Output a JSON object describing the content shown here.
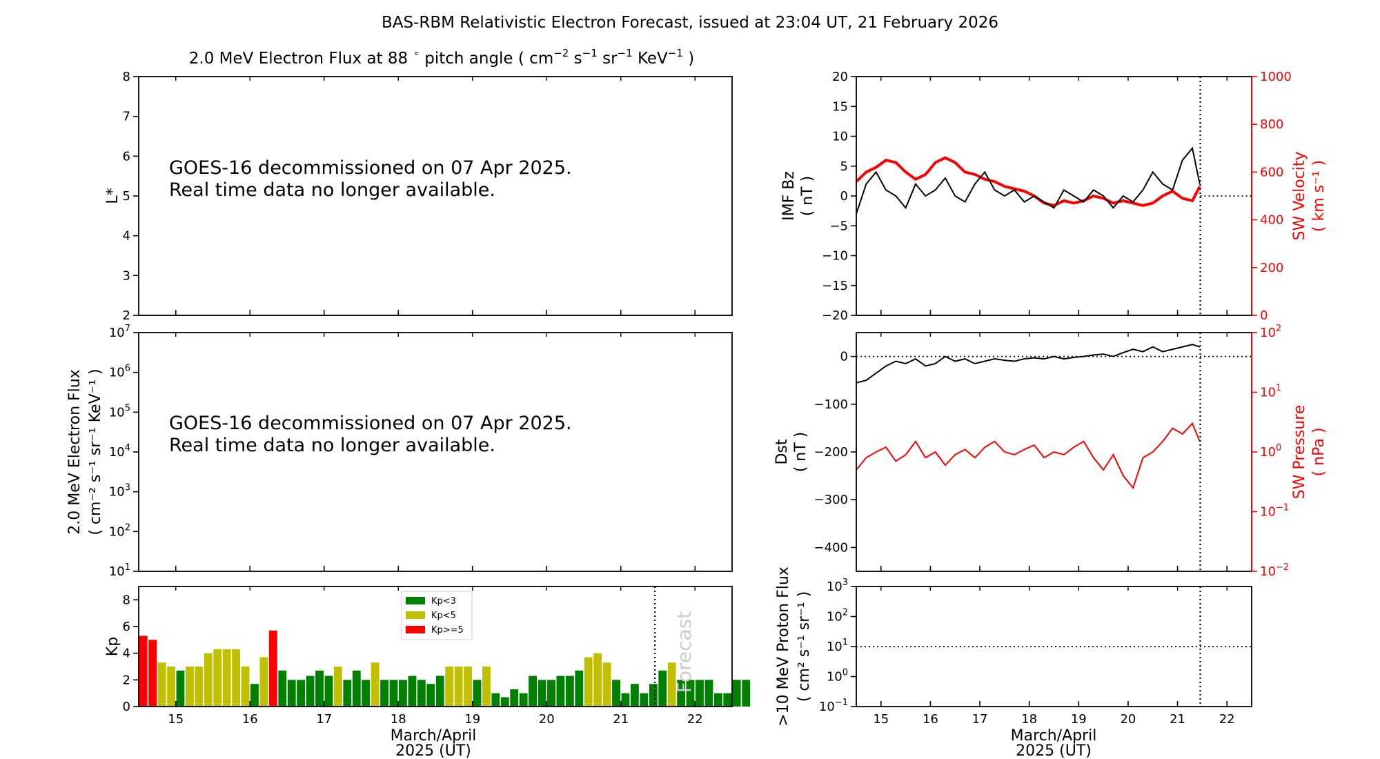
{
  "title": "BAS-RBM Relativistic Electron Forecast, issued at 23:04 UT, 21 February 2026",
  "colors": {
    "kp_low": "#008000",
    "kp_mid": "#c0c000",
    "kp_high": "#ff0000",
    "red": "#ff0000"
  },
  "x_axis": {
    "range": [
      14.5,
      22.5
    ],
    "ticks": [
      15,
      16,
      17,
      18,
      19,
      20,
      21,
      22
    ],
    "tick_labels": [
      "15",
      "16",
      "17",
      "18",
      "19",
      "20",
      "21",
      "22"
    ],
    "forecast_start": 21.46
  },
  "panel_lstar": {
    "title_prefix": "2.0 MeV Electron Flux at 88",
    "title_deg": "∘",
    "title_mid": " pitch angle ( cm",
    "title_units": [
      {
        "base": " cm",
        "exp": "−2"
      },
      {
        "base": " s",
        "exp": "−1"
      },
      {
        "base": " sr",
        "exp": "−1"
      },
      {
        "base": " KeV",
        "exp": "−1"
      }
    ],
    "ylabel": "L*",
    "ylim": [
      2,
      8
    ],
    "yticks": [
      "2",
      "3",
      "4",
      "5",
      "6",
      "7",
      "8"
    ],
    "message": [
      "GOES-16 decommissioned on 07 Apr 2025.",
      "Real time data no longer available."
    ]
  },
  "panel_flux": {
    "ylabel_line1": "2.0 MeV Electron Flux",
    "ylabel_line2": "( cm⁻² s⁻¹ sr⁻¹ KeV⁻¹ )",
    "yticks": [
      {
        "base": "10",
        "exp": "1"
      },
      {
        "base": "10",
        "exp": "2"
      },
      {
        "base": "10",
        "exp": "3"
      },
      {
        "base": "10",
        "exp": "4"
      },
      {
        "base": "10",
        "exp": "5"
      },
      {
        "base": "10",
        "exp": "6"
      },
      {
        "base": "10",
        "exp": "7"
      }
    ],
    "message": [
      "GOES-16 decommissioned on 07 Apr 2025.",
      "Real time data no longer available."
    ]
  },
  "panel_kp": {
    "ylabel": "Kp",
    "ylim": [
      0,
      9
    ],
    "yticks": [
      "0",
      "2",
      "4",
      "6",
      "8"
    ],
    "xlabel_line1": "March/April",
    "xlabel_line2": "2025 (UT)",
    "forecast_label": "Forecast",
    "legend": [
      "Kp<3",
      "Kp<5",
      "Kp>=5"
    ]
  },
  "panel_imf": {
    "ylabel_left_1": "IMF Bz",
    "ylabel_left_2": "( nT )",
    "ylabel_right_1": "SW Velocity",
    "ylabel_right_2": "( km s⁻¹ )",
    "yticks_left": [
      "−20",
      "−15",
      "−10",
      "−5",
      "0",
      "5",
      "10",
      "15",
      "20"
    ],
    "yticks_right": [
      "0",
      "200",
      "400",
      "600",
      "800",
      "1000"
    ],
    "ylim_left": [
      -20,
      20
    ],
    "ylim_right": [
      0,
      1000
    ]
  },
  "panel_dst": {
    "ylabel_left_1": "Dst",
    "ylabel_left_2": "( nT )",
    "ylabel_right_1": "SW Pressure",
    "ylabel_right_2": "( nPa )",
    "yticks_left": [
      "−400",
      "−300",
      "−200",
      "−100",
      "0"
    ],
    "yticks_right": [
      {
        "base": "10",
        "exp": "−2"
      },
      {
        "base": "10",
        "exp": "−1"
      },
      {
        "base": "10",
        "exp": "0"
      },
      {
        "base": "10",
        "exp": "1"
      },
      {
        "base": "10",
        "exp": "2"
      }
    ],
    "ylim_left": [
      -450,
      50
    ]
  },
  "panel_proton": {
    "ylabel_1": ">10 MeV Proton Flux",
    "ylabel_2": "( cm² s⁻¹ sr⁻¹ )",
    "yticks": [
      {
        "base": "10",
        "exp": "−1"
      },
      {
        "base": "10",
        "exp": "0"
      },
      {
        "base": "10",
        "exp": "1"
      },
      {
        "base": "10",
        "exp": "2"
      },
      {
        "base": "10",
        "exp": "3"
      }
    ],
    "threshold": 10,
    "xlabel_line1": "March/April",
    "xlabel_line2": "2025 (UT)"
  },
  "chart_data": [
    {
      "type": "bar",
      "title": "Kp",
      "xlabel": "March/April 2025 (UT)",
      "ylabel": "Kp",
      "ylim": [
        0,
        9
      ],
      "bar_width": 0.125,
      "start": 14.5,
      "values": [
        5.3,
        5.0,
        3.3,
        3.0,
        2.7,
        3.0,
        3.0,
        4.0,
        4.3,
        4.3,
        4.3,
        3.0,
        1.7,
        3.7,
        5.7,
        2.7,
        2.0,
        2.0,
        2.3,
        2.7,
        2.3,
        3.0,
        2.0,
        2.7,
        2.0,
        3.3,
        2.0,
        2.0,
        2.0,
        2.3,
        2.0,
        1.7,
        2.3,
        3.0,
        3.0,
        3.0,
        2.0,
        3.0,
        1.0,
        0.7,
        1.3,
        1.0,
        2.3,
        2.0,
        2.0,
        2.3,
        2.3,
        2.7,
        3.7,
        4.0,
        3.3,
        2.0,
        1.0,
        1.7,
        1.0,
        1.7,
        2.7,
        3.3,
        2.0,
        2.0,
        2.0,
        2.0,
        1.0,
        1.0,
        2.0,
        2.0
      ]
    },
    {
      "type": "line",
      "title": "IMF Bz and SW Velocity",
      "series": [
        {
          "name": "IMF Bz",
          "axis": "left",
          "units": "nT",
          "x": [
            14.5,
            14.7,
            14.9,
            15.1,
            15.3,
            15.5,
            15.7,
            15.9,
            16.1,
            16.3,
            16.5,
            16.7,
            16.9,
            17.1,
            17.3,
            17.5,
            17.7,
            17.9,
            18.1,
            18.3,
            18.5,
            18.7,
            18.9,
            19.1,
            19.3,
            19.5,
            19.7,
            19.9,
            20.1,
            20.3,
            20.5,
            20.7,
            20.9,
            21.1,
            21.3,
            21.45
          ],
          "values": [
            -3,
            2,
            4,
            1,
            0,
            -2,
            2,
            0,
            1,
            3,
            0,
            -1,
            2,
            4,
            1,
            0,
            1,
            -1,
            0,
            -1,
            -2,
            1,
            0,
            -1,
            1,
            0,
            -2,
            0,
            -1,
            1,
            4,
            2,
            1,
            6,
            8,
            2
          ]
        },
        {
          "name": "SW Velocity",
          "axis": "right",
          "units": "km s-1",
          "x": [
            14.5,
            14.7,
            14.9,
            15.1,
            15.3,
            15.5,
            15.7,
            15.9,
            16.1,
            16.3,
            16.5,
            16.7,
            16.9,
            17.1,
            17.3,
            17.5,
            17.7,
            17.9,
            18.1,
            18.3,
            18.5,
            18.7,
            18.9,
            19.1,
            19.3,
            19.5,
            19.7,
            19.9,
            20.1,
            20.3,
            20.5,
            20.7,
            20.9,
            21.1,
            21.3,
            21.45
          ],
          "values": [
            560,
            600,
            620,
            650,
            640,
            600,
            570,
            590,
            640,
            660,
            640,
            600,
            590,
            570,
            560,
            540,
            530,
            520,
            500,
            470,
            460,
            480,
            470,
            480,
            500,
            490,
            470,
            480,
            470,
            460,
            470,
            500,
            520,
            490,
            480,
            540
          ]
        }
      ]
    },
    {
      "type": "line",
      "title": "Dst and SW Pressure",
      "series": [
        {
          "name": "Dst",
          "axis": "left",
          "units": "nT",
          "x": [
            14.5,
            14.7,
            14.9,
            15.1,
            15.3,
            15.5,
            15.7,
            15.9,
            16.1,
            16.3,
            16.5,
            16.7,
            16.9,
            17.1,
            17.3,
            17.5,
            17.7,
            17.9,
            18.1,
            18.3,
            18.5,
            18.7,
            18.9,
            19.1,
            19.3,
            19.5,
            19.7,
            19.9,
            20.1,
            20.3,
            20.5,
            20.7,
            20.9,
            21.1,
            21.3,
            21.45
          ],
          "values": [
            -55,
            -50,
            -35,
            -20,
            -10,
            -15,
            -5,
            -20,
            -15,
            0,
            -10,
            -5,
            -15,
            -10,
            -5,
            -8,
            -10,
            -5,
            -3,
            -5,
            0,
            -5,
            -2,
            0,
            3,
            5,
            0,
            8,
            15,
            10,
            20,
            10,
            15,
            20,
            25,
            20
          ]
        },
        {
          "name": "SW Pressure",
          "axis": "right",
          "units": "nPa",
          "x": [
            14.5,
            14.7,
            14.9,
            15.1,
            15.3,
            15.5,
            15.7,
            15.9,
            16.1,
            16.3,
            16.5,
            16.7,
            16.9,
            17.1,
            17.3,
            17.5,
            17.7,
            17.9,
            18.1,
            18.3,
            18.5,
            18.7,
            18.9,
            19.1,
            19.3,
            19.5,
            19.7,
            19.9,
            20.1,
            20.3,
            20.5,
            20.7,
            20.9,
            21.1,
            21.3,
            21.45
          ],
          "values": [
            0.5,
            0.8,
            1.0,
            1.2,
            0.7,
            0.9,
            1.5,
            0.8,
            1.0,
            0.6,
            0.9,
            1.1,
            0.8,
            1.2,
            1.5,
            1.0,
            0.9,
            1.1,
            1.3,
            0.8,
            1.0,
            0.9,
            1.2,
            1.5,
            0.8,
            0.5,
            0.9,
            0.4,
            0.25,
            0.8,
            1.0,
            1.5,
            2.5,
            2.0,
            3.0,
            1.5
          ]
        }
      ]
    }
  ]
}
